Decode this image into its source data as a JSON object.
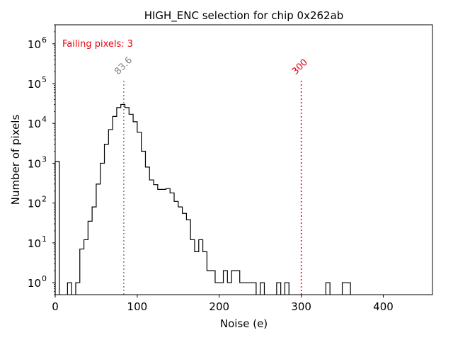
{
  "chart_data": {
    "type": "histogram",
    "title": "HIGH_ENC selection for chip 0x262ab",
    "xlabel": "Noise (e)",
    "ylabel": "Number of pixels",
    "xlim": [
      0,
      460
    ],
    "ylog": true,
    "ylim": [
      0.5,
      3000000
    ],
    "x_ticks": [
      0,
      100,
      200,
      300,
      400
    ],
    "y_ticks": [
      {
        "value": 1,
        "base": "10",
        "exp": "0"
      },
      {
        "value": 10,
        "base": "10",
        "exp": "1"
      },
      {
        "value": 100,
        "base": "10",
        "exp": "2"
      },
      {
        "value": 1000,
        "base": "10",
        "exp": "3"
      },
      {
        "value": 10000,
        "base": "10",
        "exp": "4"
      },
      {
        "value": 100000,
        "base": "10",
        "exp": "5"
      },
      {
        "value": 1000000,
        "base": "10",
        "exp": "6"
      }
    ],
    "annotation": {
      "text": "Failing pixels: 3",
      "color": "#e8000b"
    },
    "vlines": [
      {
        "value": 83.6,
        "label": "83.6",
        "color": "#808080"
      },
      {
        "value": 300,
        "label": "300",
        "color": "#e8000b"
      }
    ],
    "bin_width": 5,
    "series": [
      {
        "color": "#000000",
        "bins": [
          [
            0,
            1100
          ],
          [
            15,
            1
          ],
          [
            25,
            1
          ],
          [
            30,
            7
          ],
          [
            35,
            12
          ],
          [
            40,
            35
          ],
          [
            45,
            80
          ],
          [
            50,
            300
          ],
          [
            55,
            1000
          ],
          [
            60,
            3000
          ],
          [
            65,
            7000
          ],
          [
            70,
            15000
          ],
          [
            75,
            25000
          ],
          [
            80,
            30000
          ],
          [
            85,
            25000
          ],
          [
            90,
            17000
          ],
          [
            95,
            11000
          ],
          [
            100,
            6000
          ],
          [
            105,
            2000
          ],
          [
            110,
            800
          ],
          [
            115,
            380
          ],
          [
            120,
            290
          ],
          [
            125,
            220
          ],
          [
            130,
            220
          ],
          [
            135,
            230
          ],
          [
            140,
            180
          ],
          [
            145,
            110
          ],
          [
            150,
            80
          ],
          [
            155,
            55
          ],
          [
            160,
            38
          ],
          [
            165,
            12
          ],
          [
            170,
            6
          ],
          [
            175,
            12
          ],
          [
            180,
            6
          ],
          [
            185,
            2
          ],
          [
            190,
            2
          ],
          [
            195,
            1
          ],
          [
            200,
            1
          ],
          [
            205,
            2
          ],
          [
            210,
            1
          ],
          [
            215,
            2
          ],
          [
            220,
            2
          ],
          [
            225,
            1
          ],
          [
            230,
            1
          ],
          [
            235,
            1
          ],
          [
            240,
            1
          ],
          [
            250,
            1
          ],
          [
            270,
            1
          ],
          [
            280,
            1
          ],
          [
            330,
            1
          ],
          [
            350,
            1
          ],
          [
            355,
            1
          ]
        ]
      }
    ]
  }
}
